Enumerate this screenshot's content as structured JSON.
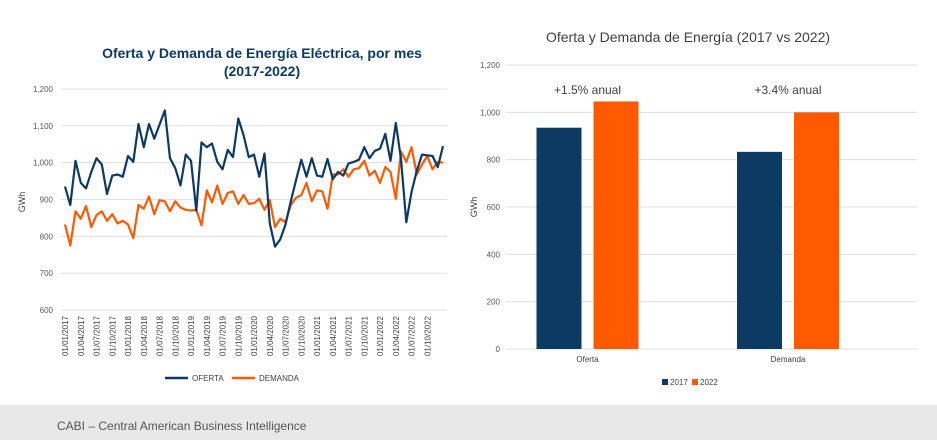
{
  "footer": {
    "text": "CABI – Central American Business Intelligence"
  },
  "colors": {
    "oferta": "#0d3a63",
    "demanda": "#ff5a00",
    "grid": "#d9d9d9"
  },
  "chart_data": [
    {
      "type": "line",
      "title": "Oferta y Demanda de Energía Eléctrica, por mes",
      "title2": "(2017-2022)",
      "ylabel": "GWh",
      "ylim": [
        600,
        1200
      ],
      "yticks": [
        "600",
        "700",
        "800",
        "900",
        "1,000",
        "1,100",
        "1,200"
      ],
      "xtick_labels": [
        "01/01/2017",
        "01/04/2017",
        "01/07/2017",
        "01/10/2017",
        "01/01/2018",
        "01/04/2018",
        "01/07/2018",
        "01/10/2018",
        "01/01/2019",
        "01/04/2019",
        "01/07/2019",
        "01/10/2019",
        "01/01/2020",
        "01/04/2020",
        "01/07/2020",
        "01/10/2020",
        "01/01/2021",
        "01/04/2021",
        "01/07/2021",
        "01/10/2021",
        "01/01/2022",
        "01/04/2022",
        "01/07/2022",
        "01/10/2022"
      ],
      "legend": "bottom",
      "series": [
        {
          "name": "OFERTA",
          "values": [
            935,
            885,
            1005,
            945,
            930,
            975,
            1012,
            995,
            915,
            965,
            968,
            962,
            1018,
            1002,
            1105,
            1042,
            1105,
            1065,
            1103,
            1142,
            1012,
            985,
            938,
            1022,
            1005,
            870,
            1055,
            1042,
            1052,
            1002,
            982,
            1035,
            1015,
            1120,
            1075,
            1015,
            1022,
            962,
            1025,
            835,
            772,
            792,
            832,
            895,
            952,
            1008,
            962,
            1012,
            965,
            962,
            1010,
            955,
            975,
            965,
            998,
            1002,
            1008,
            1042,
            1012,
            1032,
            1038,
            1078,
            1005,
            1108,
            1010,
            838,
            920,
            978,
            1022,
            1020,
            1018,
            988,
            1045
          ]
        },
        {
          "name": "DEMANDA",
          "values": [
            832,
            775,
            868,
            848,
            882,
            825,
            858,
            868,
            842,
            860,
            835,
            842,
            832,
            795,
            885,
            875,
            908,
            860,
            898,
            895,
            868,
            895,
            878,
            872,
            870,
            872,
            830,
            925,
            892,
            938,
            888,
            918,
            922,
            888,
            912,
            888,
            890,
            902,
            872,
            898,
            825,
            848,
            838,
            885,
            905,
            912,
            945,
            895,
            925,
            922,
            875,
            968,
            968,
            982,
            962,
            982,
            985,
            1005,
            965,
            978,
            945,
            988,
            975,
            902,
            1030,
            1002,
            1042,
            968,
            995,
            1018,
            982,
            1002,
            1000
          ]
        }
      ]
    },
    {
      "type": "bar",
      "title": "Oferta y Demanda de Energía (2017 vs 2022)",
      "ylabel": "GWh",
      "ylim": [
        0,
        1200
      ],
      "yticks": [
        "0",
        "200",
        "400",
        "600",
        "800",
        "1,000",
        "1,200"
      ],
      "categories": [
        "Oferta",
        "Demanda"
      ],
      "series": [
        {
          "name": "2017",
          "values": [
            935,
            833
          ]
        },
        {
          "name": "2022",
          "values": [
            1046,
            1000
          ]
        }
      ],
      "annotations": [
        "+1.5% anual",
        "+3.4% anual"
      ],
      "legend": "bottom"
    }
  ]
}
